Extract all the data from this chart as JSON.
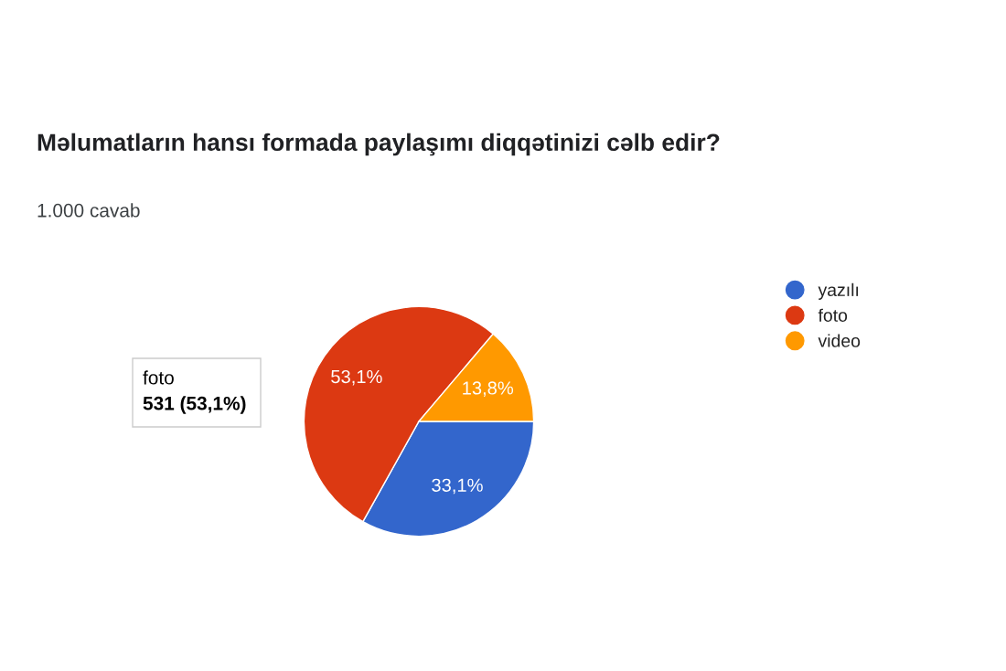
{
  "chart_data": {
    "type": "pie",
    "title": "Məlumatların hansı formada paylaşımı diqqətinizi cəlb edir?",
    "subtitle": "1.000 cavab",
    "categories": [
      "yazılı",
      "foto",
      "video"
    ],
    "values": [
      33.1,
      53.1,
      13.8
    ],
    "colors": [
      "#3366cc",
      "#dc3912",
      "#ff9900"
    ],
    "value_labels": [
      "33,1%",
      "53,1%",
      "13,8%"
    ],
    "annotations": [
      "foto",
      "531 (53,1%)"
    ],
    "legend": "right"
  }
}
